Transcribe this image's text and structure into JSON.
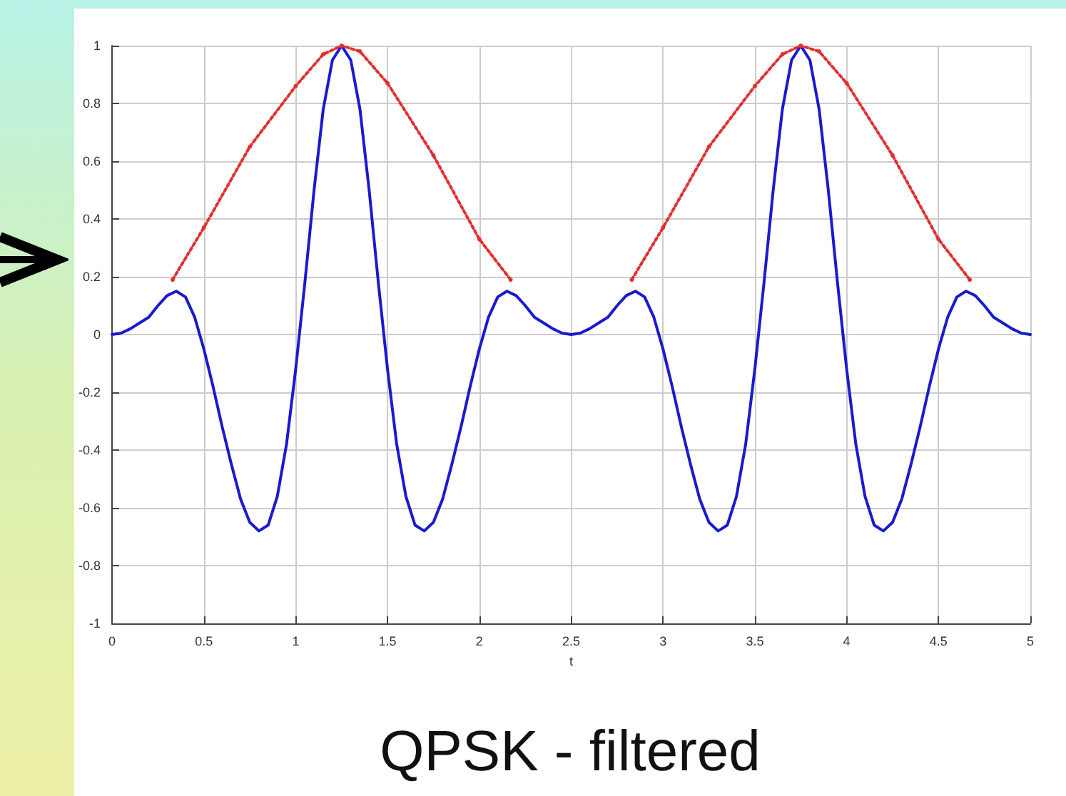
{
  "chart_data": {
    "type": "line",
    "title": "QPSK - filtered",
    "xlabel": "t",
    "xlim": [
      0,
      5
    ],
    "xticks": [
      0,
      0.5,
      1,
      1.5,
      2,
      2.5,
      3,
      3.5,
      4,
      4.5,
      5
    ],
    "ylim": [
      -1,
      1
    ],
    "yticks": [
      -1,
      -0.8,
      -0.6,
      -0.4,
      -0.2,
      0,
      0.2,
      0.4,
      0.6,
      0.8,
      1
    ],
    "grid": true,
    "series": [
      {
        "color": "#1a1ad0",
        "line_style": "solid",
        "marker": "none",
        "x": [
          0,
          0.05,
          0.1,
          0.15,
          0.2,
          0.25,
          0.3,
          0.35,
          0.4,
          0.45,
          0.5,
          0.55,
          0.6,
          0.65,
          0.7,
          0.75,
          0.8,
          0.85,
          0.9,
          0.95,
          1,
          1.05,
          1.1,
          1.15,
          1.2,
          1.25,
          1.3,
          1.35,
          1.4,
          1.45,
          1.5,
          1.55,
          1.6,
          1.65,
          1.7,
          1.75,
          1.8,
          1.85,
          1.9,
          1.95,
          2,
          2.05,
          2.1,
          2.15,
          2.2,
          2.25,
          2.3,
          2.35,
          2.4,
          2.45,
          2.5,
          2.55,
          2.6,
          2.65,
          2.7,
          2.75,
          2.8,
          2.85,
          2.9,
          2.95,
          3,
          3.05,
          3.1,
          3.15,
          3.2,
          3.25,
          3.3,
          3.35,
          3.4,
          3.45,
          3.5,
          3.55,
          3.6,
          3.65,
          3.7,
          3.75,
          3.8,
          3.85,
          3.9,
          3.95,
          4,
          4.05,
          4.1,
          4.15,
          4.2,
          4.25,
          4.3,
          4.35,
          4.4,
          4.45,
          4.5,
          4.55,
          4.6,
          4.65,
          4.7,
          4.75,
          4.8,
          4.85,
          4.9,
          4.95,
          5
        ],
        "values": [
          0,
          0.005,
          0.02,
          0.04,
          0.06,
          0.1,
          0.135,
          0.15,
          0.13,
          0.06,
          -0.05,
          -0.18,
          -0.32,
          -0.45,
          -0.57,
          -0.65,
          -0.68,
          -0.66,
          -0.56,
          -0.38,
          -0.12,
          0.18,
          0.5,
          0.78,
          0.95,
          1,
          0.95,
          0.78,
          0.5,
          0.18,
          -0.12,
          -0.38,
          -0.56,
          -0.66,
          -0.68,
          -0.65,
          -0.57,
          -0.45,
          -0.32,
          -0.18,
          -0.05,
          0.06,
          0.13,
          0.15,
          0.135,
          0.1,
          0.06,
          0.04,
          0.02,
          0.005,
          0,
          0.005,
          0.02,
          0.04,
          0.06,
          0.1,
          0.135,
          0.15,
          0.13,
          0.06,
          -0.05,
          -0.18,
          -0.32,
          -0.45,
          -0.57,
          -0.65,
          -0.68,
          -0.66,
          -0.56,
          -0.38,
          -0.12,
          0.18,
          0.5,
          0.78,
          0.95,
          1,
          0.95,
          0.78,
          0.5,
          0.18,
          -0.12,
          -0.38,
          -0.56,
          -0.66,
          -0.68,
          -0.65,
          -0.57,
          -0.45,
          -0.32,
          -0.18,
          -0.05,
          0.06,
          0.13,
          0.15,
          0.135,
          0.1,
          0.06,
          0.04,
          0.02,
          0.005,
          0
        ]
      },
      {
        "color": "#e03030",
        "line_style": "dotted",
        "marker": "circle",
        "x": [
          0.33,
          0.5,
          0.75,
          1,
          1.15,
          1.25,
          1.35,
          1.5,
          1.75,
          2,
          2.17,
          2.5,
          2.83,
          3,
          3.25,
          3.5,
          3.65,
          3.75,
          3.85,
          4,
          4.25,
          4.5,
          4.67
        ],
        "values": [
          0.19,
          0.37,
          0.65,
          0.86,
          0.97,
          1,
          0.98,
          0.87,
          0.62,
          0.33,
          0.19,
          null,
          0.19,
          0.37,
          0.65,
          0.86,
          0.97,
          1,
          0.98,
          0.87,
          0.62,
          0.33,
          0.19
        ]
      }
    ]
  }
}
